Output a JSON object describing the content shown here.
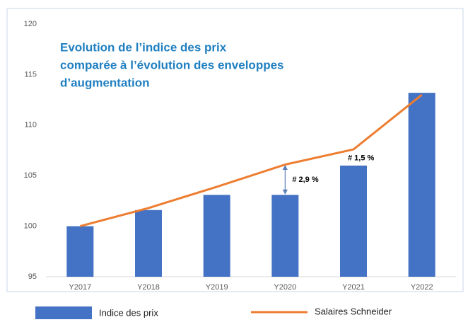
{
  "chart_data": {
    "type": "bar_line",
    "title": [
      "Evolution de l’indice des prix",
      "comparée à l’évolution des enveloppes",
      "d’augmentation"
    ],
    "categories": [
      "Y2017",
      "Y2018",
      "Y2019",
      "Y2020",
      "Y2021",
      "Y2022"
    ],
    "series": [
      {
        "name": "Indice des prix",
        "type": "bar",
        "color": "#4472c4",
        "values": [
          100.0,
          101.6,
          103.1,
          103.1,
          106.0,
          113.2
        ]
      },
      {
        "name": "Salaires Schneider",
        "type": "line",
        "color": "#ed7d31",
        "values": [
          100.0,
          101.8,
          103.9,
          106.1,
          107.6,
          113.0
        ]
      }
    ],
    "annotations": [
      "# 2,9 %",
      "# 1,5 %"
    ],
    "ylim": [
      95,
      120
    ],
    "yticks": [
      95,
      100,
      105,
      110,
      115,
      120
    ],
    "grid": false
  }
}
